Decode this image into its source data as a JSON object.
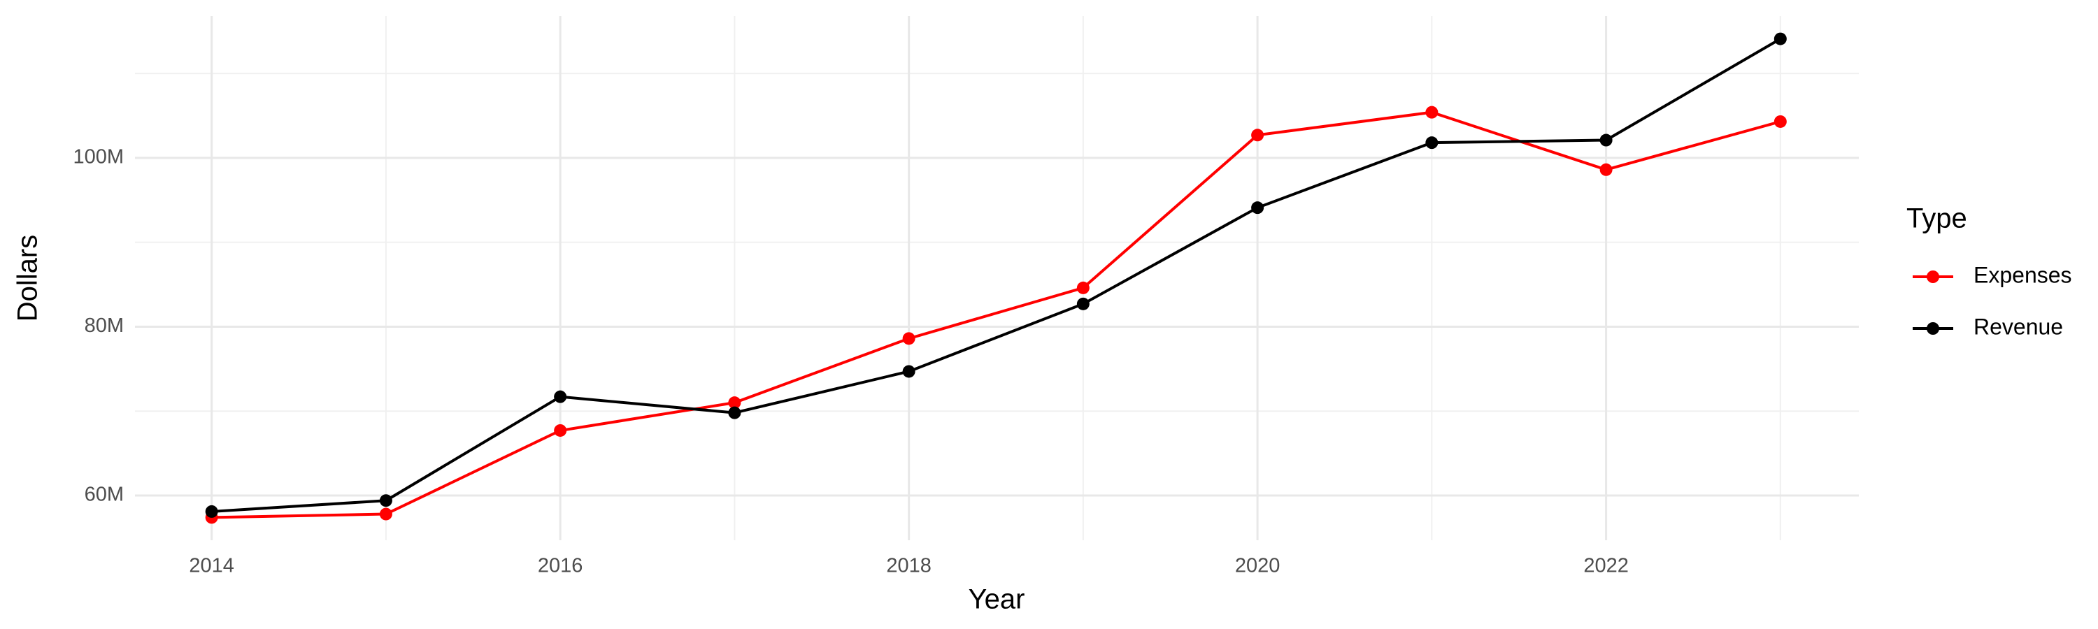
{
  "chart_data": {
    "type": "line",
    "x_label": "Year",
    "y_label": "Dollars",
    "legend_title": "Type",
    "x": [
      2014,
      2015,
      2016,
      2017,
      2018,
      2019,
      2020,
      2021,
      2022,
      2023
    ],
    "series": [
      {
        "name": "Expenses",
        "color": "#ff0000",
        "values": [
          57400000,
          57800000,
          67700000,
          71000000,
          78600000,
          84600000,
          102700000,
          105400000,
          98600000,
          104300000
        ]
      },
      {
        "name": "Revenue",
        "color": "#000000",
        "values": [
          58100000,
          59400000,
          71700000,
          69800000,
          74700000,
          82700000,
          94100000,
          101800000,
          102100000,
          114100000
        ]
      }
    ],
    "xlim": [
      2013.56,
      2023.45
    ],
    "xticks": [
      2014,
      2016,
      2018,
      2020,
      2022
    ],
    "ylim": [
      54700000,
      116800000
    ],
    "yticks": [
      {
        "value": 60000000,
        "label": "60M"
      },
      {
        "value": 80000000,
        "label": "80M"
      },
      {
        "value": 100000000,
        "label": "100M"
      }
    ],
    "grid": true,
    "legend": "right"
  }
}
